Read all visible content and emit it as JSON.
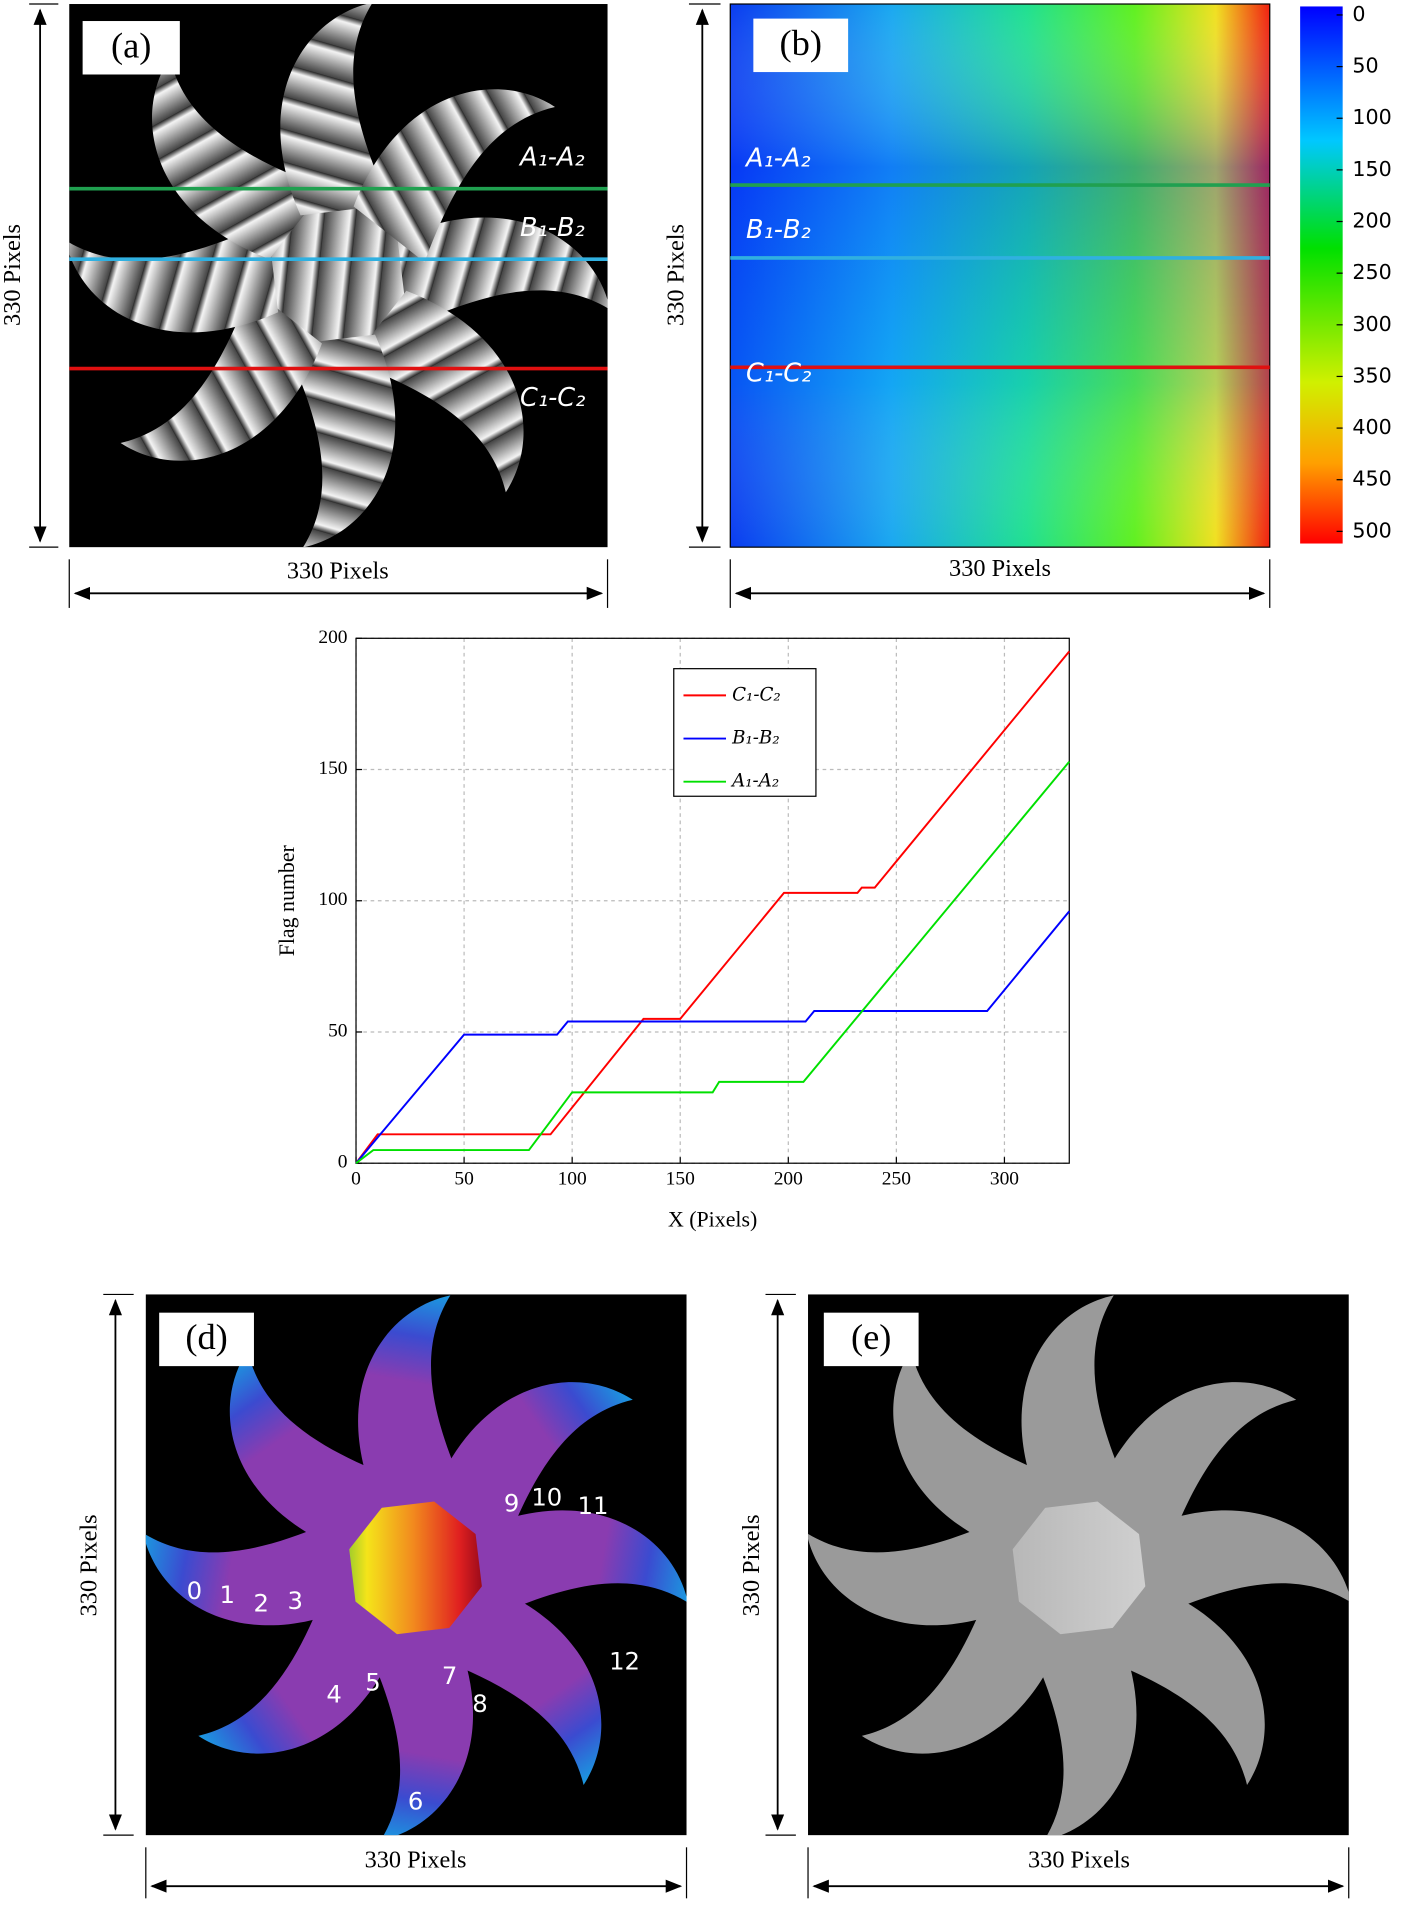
{
  "panels": {
    "a": {
      "tag": "(a)",
      "width_label": "330 Pixels",
      "height_label": "330 Pixels",
      "lines": [
        "A₁-A₂",
        "B₁-B₂",
        "C₁-C₂"
      ]
    },
    "b": {
      "tag": "(b)",
      "width_label": "330 Pixels",
      "height_label": "330 Pixels",
      "lines": [
        "A₁-A₂",
        "B₁-B₂",
        "C₁-C₂"
      ],
      "colorbar": {
        "lim": [
          0,
          500
        ],
        "ticks": [
          0,
          50,
          100,
          150,
          200,
          250,
          300,
          350,
          400,
          450,
          500
        ]
      }
    },
    "d": {
      "tag": "(d)",
      "width_label": "330 Pixels",
      "height_label": "330 Pixels",
      "labels": [
        "0",
        "1",
        "2",
        "3",
        "4",
        "5",
        "6",
        "7",
        "8",
        "9",
        "10",
        "11",
        "12"
      ]
    },
    "e": {
      "tag": "(e)",
      "width_label": "330 Pixels",
      "height_label": "330 Pixels"
    }
  },
  "chart_data": {
    "type": "line",
    "xlabel": "X (Pixels)",
    "ylabel": "Flag number",
    "xlim": [
      0,
      330
    ],
    "xticks": [
      0,
      50,
      100,
      150,
      200,
      250,
      300
    ],
    "ylim": [
      0,
      200
    ],
    "yticks": [
      0,
      50,
      100,
      150,
      200
    ],
    "grid": true,
    "legend": "top-center",
    "series": [
      {
        "name": "C₁-C₂",
        "color": "#ff0000",
        "x": [
          0,
          10,
          90,
          133,
          150,
          198,
          232,
          234,
          240,
          330
        ],
        "values": [
          0,
          11,
          11,
          55,
          55,
          103,
          103,
          105,
          105,
          195
        ]
      },
      {
        "name": "B₁-B₂",
        "color": "#0000ff",
        "x": [
          0,
          50,
          93,
          98,
          208,
          212,
          292,
          330
        ],
        "values": [
          0,
          49,
          49,
          54,
          54,
          58,
          58,
          96
        ]
      },
      {
        "name": "A₁-A₂",
        "color": "#00e000",
        "x": [
          0,
          8,
          80,
          100,
          165,
          168,
          207,
          330
        ],
        "values": [
          0,
          5,
          5,
          27,
          27,
          31,
          31,
          153
        ]
      }
    ]
  }
}
